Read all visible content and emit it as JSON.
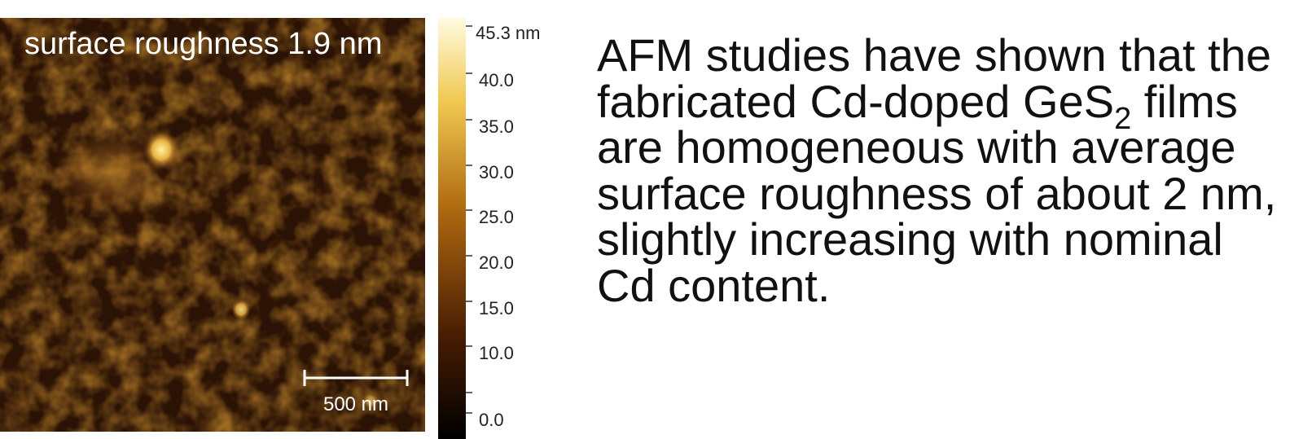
{
  "image": {
    "caption": "surface roughness 1.9 nm",
    "scale_bar": "500 nm"
  },
  "colorbar": {
    "labels": [
      "45.3 nm",
      "40.0",
      "35.0",
      "30.0",
      "25.0",
      "20.0",
      "15.0",
      "10.0",
      "0.0"
    ]
  },
  "paragraph": {
    "before": "AFM studies have shown that the fabricated Cd-doped GeS",
    "subscript": "2",
    "after": " films are homogeneous with average surface roughness of about 2 nm, slightly increasing with nominal Cd content."
  }
}
